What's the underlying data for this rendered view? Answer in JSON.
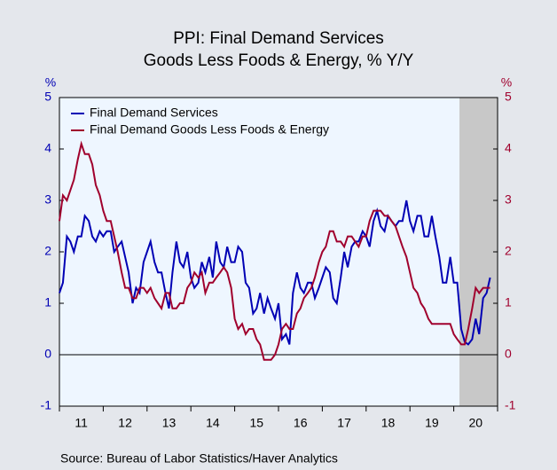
{
  "chart_data": {
    "type": "line",
    "title": [
      "PPI: Final Demand Services",
      "Goods Less Foods & Energy, % Y/Y"
    ],
    "y_label": "%",
    "y2_label": "%",
    "source": "Source:  Bureau of Labor Statistics/Haver Analytics",
    "xlim": [
      2011,
      2021
    ],
    "x_minor_ticks": [
      2011,
      2012,
      2013,
      2014,
      2015,
      2016,
      2017,
      2018,
      2019,
      2020,
      2021
    ],
    "xticks": [
      {
        "value": 2011.5,
        "label": "11"
      },
      {
        "value": 2012.5,
        "label": "12"
      },
      {
        "value": 2013.5,
        "label": "13"
      },
      {
        "value": 2014.5,
        "label": "14"
      },
      {
        "value": 2015.5,
        "label": "15"
      },
      {
        "value": 2016.5,
        "label": "16"
      },
      {
        "value": 2017.5,
        "label": "17"
      },
      {
        "value": 2018.5,
        "label": "18"
      },
      {
        "value": 2019.5,
        "label": "19"
      },
      {
        "value": 2020.5,
        "label": "20"
      }
    ],
    "ylim": [
      -1,
      5
    ],
    "yticks": [
      -1,
      0,
      1,
      2,
      3,
      4,
      5
    ],
    "y2lim": [
      -1,
      5
    ],
    "y2ticks": [
      -1,
      0,
      1,
      2,
      3,
      4,
      5
    ],
    "shading": [
      2020.13,
      2021
    ],
    "shading_color": "#c8c8c8",
    "legend": "top-left",
    "x": [
      2011.0,
      2011.08,
      2011.17,
      2011.25,
      2011.33,
      2011.42,
      2011.5,
      2011.58,
      2011.67,
      2011.75,
      2011.83,
      2011.92,
      2012.0,
      2012.08,
      2012.17,
      2012.25,
      2012.33,
      2012.42,
      2012.5,
      2012.58,
      2012.67,
      2012.75,
      2012.83,
      2012.92,
      2013.0,
      2013.08,
      2013.17,
      2013.25,
      2013.33,
      2013.42,
      2013.5,
      2013.58,
      2013.67,
      2013.75,
      2013.83,
      2013.92,
      2014.0,
      2014.08,
      2014.17,
      2014.25,
      2014.33,
      2014.42,
      2014.5,
      2014.58,
      2014.67,
      2014.75,
      2014.83,
      2014.92,
      2015.0,
      2015.08,
      2015.17,
      2015.25,
      2015.33,
      2015.42,
      2015.5,
      2015.58,
      2015.67,
      2015.75,
      2015.83,
      2015.92,
      2016.0,
      2016.08,
      2016.17,
      2016.25,
      2016.33,
      2016.42,
      2016.5,
      2016.58,
      2016.67,
      2016.75,
      2016.83,
      2016.92,
      2017.0,
      2017.08,
      2017.17,
      2017.25,
      2017.33,
      2017.42,
      2017.5,
      2017.58,
      2017.67,
      2017.75,
      2017.83,
      2017.92,
      2018.0,
      2018.08,
      2018.17,
      2018.25,
      2018.33,
      2018.42,
      2018.5,
      2018.58,
      2018.67,
      2018.75,
      2018.83,
      2018.92,
      2019.0,
      2019.08,
      2019.17,
      2019.25,
      2019.33,
      2019.42,
      2019.5,
      2019.58,
      2019.67,
      2019.75,
      2019.83,
      2019.92,
      2020.0,
      2020.08,
      2020.17,
      2020.25,
      2020.33,
      2020.42,
      2020.5,
      2020.58,
      2020.67,
      2020.75,
      2020.83
    ],
    "series": [
      {
        "name": "Final Demand Services",
        "color": "#0000b4",
        "axis": "y",
        "values": [
          1.2,
          1.4,
          2.3,
          2.2,
          2.0,
          2.3,
          2.3,
          2.7,
          2.6,
          2.3,
          2.2,
          2.4,
          2.3,
          2.4,
          2.4,
          2.0,
          2.1,
          2.2,
          1.9,
          1.6,
          1.0,
          1.3,
          1.2,
          1.8,
          2.0,
          2.2,
          1.8,
          1.6,
          1.6,
          1.2,
          0.9,
          1.6,
          2.2,
          1.8,
          1.7,
          2.0,
          1.5,
          1.3,
          1.4,
          1.8,
          1.6,
          1.9,
          1.5,
          2.2,
          1.8,
          1.7,
          2.1,
          1.8,
          1.8,
          2.1,
          2.0,
          1.4,
          1.3,
          0.8,
          0.9,
          1.2,
          0.8,
          1.1,
          0.9,
          0.7,
          1.0,
          0.3,
          0.4,
          0.2,
          1.2,
          1.6,
          1.3,
          1.2,
          1.4,
          1.4,
          1.1,
          1.3,
          1.5,
          1.7,
          1.6,
          1.1,
          1.0,
          1.5,
          2.0,
          1.7,
          2.1,
          2.2,
          2.2,
          2.4,
          2.3,
          2.1,
          2.6,
          2.8,
          2.5,
          2.4,
          2.7,
          2.6,
          2.5,
          2.6,
          2.6,
          3.0,
          2.6,
          2.4,
          2.7,
          2.7,
          2.3,
          2.3,
          2.7,
          2.3,
          1.9,
          1.4,
          1.4,
          1.9,
          1.4,
          1.4,
          0.5,
          0.25,
          0.2,
          0.3,
          0.7,
          0.4,
          1.1,
          1.2,
          1.5
        ]
      },
      {
        "name": "Final Demand Goods Less Foods & Energy",
        "color": "#a0002d",
        "axis": "y2",
        "values": [
          2.6,
          3.1,
          3.0,
          3.2,
          3.4,
          3.8,
          4.1,
          3.9,
          3.9,
          3.7,
          3.3,
          3.1,
          2.8,
          2.6,
          2.6,
          2.3,
          2.0,
          1.6,
          1.3,
          1.3,
          1.1,
          1.1,
          1.3,
          1.3,
          1.2,
          1.3,
          1.1,
          1.0,
          0.9,
          1.2,
          1.2,
          0.9,
          0.9,
          1.0,
          1.0,
          1.3,
          1.4,
          1.6,
          1.5,
          1.6,
          1.2,
          1.4,
          1.4,
          1.5,
          1.6,
          1.7,
          1.6,
          1.3,
          0.7,
          0.5,
          0.6,
          0.4,
          0.5,
          0.5,
          0.3,
          0.2,
          -0.1,
          -0.1,
          -0.1,
          0.0,
          0.2,
          0.5,
          0.6,
          0.5,
          0.5,
          0.8,
          0.9,
          1.1,
          1.2,
          1.3,
          1.5,
          1.8,
          2.0,
          2.1,
          2.4,
          2.4,
          2.2,
          2.2,
          2.1,
          2.3,
          2.3,
          2.2,
          2.1,
          2.3,
          2.3,
          2.6,
          2.8,
          2.8,
          2.8,
          2.7,
          2.7,
          2.6,
          2.5,
          2.3,
          2.1,
          1.9,
          1.6,
          1.3,
          1.2,
          1.0,
          0.9,
          0.7,
          0.6,
          0.6,
          0.6,
          0.6,
          0.6,
          0.6,
          0.4,
          0.3,
          0.2,
          0.2,
          0.5,
          0.9,
          1.3,
          1.2,
          1.3,
          1.3,
          1.3
        ]
      }
    ]
  }
}
